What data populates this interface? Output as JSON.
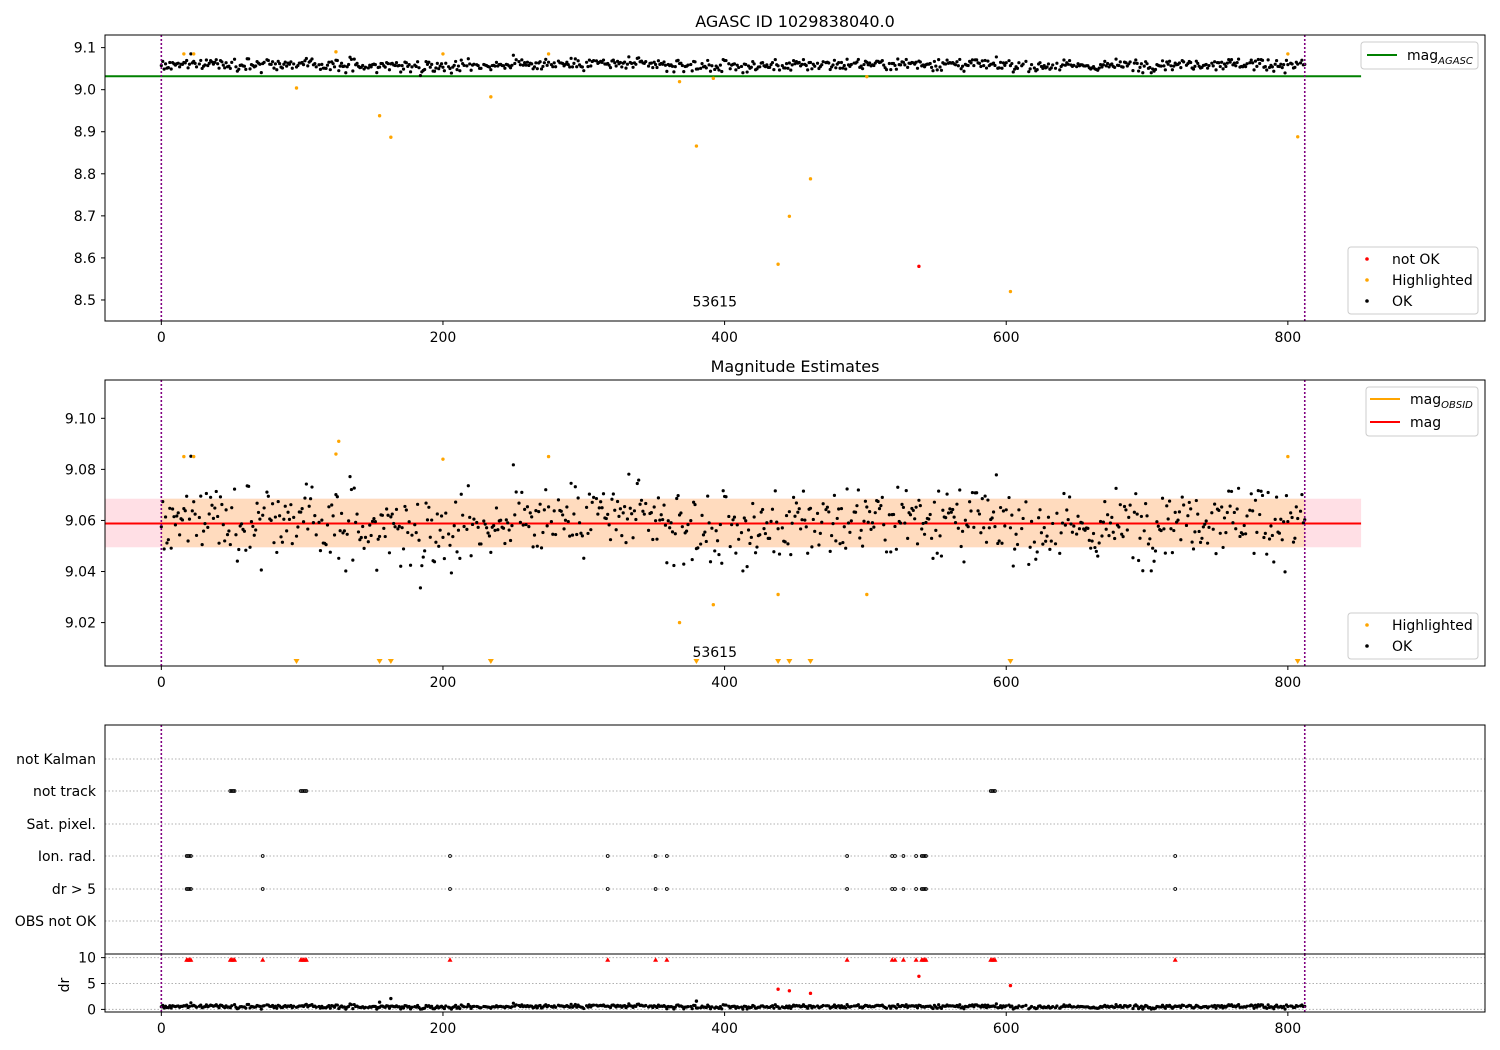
{
  "chart_data": [
    {
      "type": "scatter",
      "title": "AGASC ID 1029838040.0",
      "xlabel": "",
      "ylabel": "",
      "xlim": [
        -40,
        940
      ],
      "ylim": [
        8.45,
        9.13
      ],
      "xticks": [
        0,
        200,
        400,
        600,
        800
      ],
      "yticks": [
        8.5,
        8.6,
        8.7,
        8.8,
        8.9,
        9.0,
        9.1
      ],
      "annotation": {
        "text": "53615",
        "x": 393,
        "y": 8.485
      },
      "vlines": [
        0,
        812
      ],
      "hlines": [
        {
          "name": "mag_AGASC",
          "y": 9.032,
          "x_range": [
            -40,
            852
          ],
          "color": "#008000"
        }
      ],
      "legend_lines": [
        {
          "label": "mag",
          "sub": "AGASC",
          "color": "#008000"
        }
      ],
      "legend_points": [
        {
          "label": "not OK",
          "color": "#ff0000"
        },
        {
          "label": "Highlighted",
          "color": "#ffa500"
        },
        {
          "label": "OK",
          "color": "#000000"
        }
      ],
      "series": [
        {
          "name": "Highlighted",
          "color": "#ffa500",
          "points": [
            [
              16,
              9.085
            ],
            [
              23,
              9.085
            ],
            [
              96,
              9.004
            ],
            [
              124,
              9.09
            ],
            [
              155,
              8.938
            ],
            [
              163,
              8.887
            ],
            [
              200,
              9.085
            ],
            [
              234,
              8.983
            ],
            [
              275,
              9.085
            ],
            [
              368,
              9.019
            ],
            [
              380,
              8.866
            ],
            [
              392,
              9.027
            ],
            [
              438,
              8.585
            ],
            [
              446,
              8.699
            ],
            [
              461,
              8.788
            ],
            [
              501,
              9.031
            ],
            [
              603,
              8.52
            ],
            [
              800,
              9.085
            ],
            [
              807,
              8.888
            ]
          ]
        },
        {
          "name": "not OK",
          "color": "#ff0000",
          "points": [
            [
              538,
              8.58
            ]
          ]
        }
      ],
      "ok_series": {
        "name": "OK",
        "color": "#000000",
        "x_range": [
          0,
          812
        ],
        "mean": 9.059,
        "spread": 0.009
      }
    },
    {
      "type": "scatter",
      "title": "Magnitude Estimates",
      "xlabel": "",
      "ylabel": "",
      "xlim": [
        -40,
        940
      ],
      "ylim": [
        9.003,
        9.115
      ],
      "xticks": [
        0,
        200,
        400,
        600,
        800
      ],
      "yticks": [
        9.02,
        9.04,
        9.06,
        9.08,
        9.1
      ],
      "ytick_labels": [
        "9.02",
        "9.04",
        "9.06",
        "9.08",
        "9.10"
      ],
      "annotation": {
        "text": "53615",
        "x": 393,
        "y": 9.0045
      },
      "vlines": [
        0,
        812
      ],
      "band_outer": {
        "x_range": [
          -40,
          852
        ],
        "y_range": [
          9.0495,
          9.0685
        ],
        "color": "#ffc0cb"
      },
      "band_inner": {
        "x_range": [
          0,
          812
        ],
        "y_range": [
          9.0495,
          9.0685
        ],
        "color": "#ffdab9"
      },
      "hlines": [
        {
          "name": "mag",
          "y": 9.0588,
          "x_range": [
            -40,
            852
          ],
          "color": "#ff0000"
        }
      ],
      "legend_lines": [
        {
          "label": "mag",
          "sub": "OBSID",
          "color": "#ffa500"
        },
        {
          "label": "mag",
          "sub": "",
          "color": "#ff0000"
        }
      ],
      "legend_points": [
        {
          "label": "Highlighted",
          "color": "#ffa500"
        },
        {
          "label": "OK",
          "color": "#000000"
        }
      ],
      "series": [
        {
          "name": "Highlighted",
          "color": "#ffa500",
          "points": [
            [
              16,
              9.085
            ],
            [
              23,
              9.085
            ],
            [
              124,
              9.086
            ],
            [
              126,
              9.091
            ],
            [
              200,
              9.084
            ],
            [
              275,
              9.085
            ],
            [
              368,
              9.02
            ],
            [
              392,
              9.027
            ],
            [
              438,
              9.031
            ],
            [
              501,
              9.031
            ],
            [
              800,
              9.085
            ]
          ]
        }
      ],
      "offscale_markers": {
        "color": "#ffa500",
        "x": [
          96,
          155,
          163,
          234,
          380,
          438,
          446,
          461,
          603,
          807
        ]
      },
      "ok_series": {
        "name": "OK",
        "color": "#000000",
        "x_range": [
          0,
          812
        ],
        "mean": 9.059,
        "spread": 0.009
      }
    },
    {
      "type": "scatter",
      "title": "",
      "xlabel": "",
      "ylabel": "",
      "xlim": [
        -40,
        940
      ],
      "vlines": [
        0,
        812
      ],
      "flag_rows": [
        "not Kalman",
        "not track",
        "Sat. pixel.",
        "Ion. rad.",
        "dr > 5",
        "OBS not OK"
      ],
      "flags": {
        "not track": [
          49,
          50,
          51,
          52,
          99,
          100,
          101,
          102,
          103,
          589,
          590,
          591,
          592
        ],
        "Ion. rad.": [
          18,
          19,
          20,
          21,
          72,
          205,
          317,
          351,
          359,
          487,
          519,
          521,
          527,
          536,
          540,
          541,
          542,
          543,
          720
        ],
        "dr > 5": [
          18,
          19,
          20,
          21,
          72,
          205,
          317,
          351,
          359,
          487,
          519,
          521,
          527,
          536,
          540,
          541,
          542,
          543,
          720
        ]
      }
    },
    {
      "type": "scatter",
      "title": "",
      "xlabel": "",
      "ylabel": "dr",
      "xlim": [
        -40,
        940
      ],
      "ylim": [
        -0.5,
        10.7
      ],
      "xticks": [
        0,
        200,
        400,
        600,
        800
      ],
      "yticks": [
        0,
        5,
        10
      ],
      "vlines": [
        0,
        812
      ],
      "hlines_dotted": [
        0,
        5,
        10
      ],
      "series": [
        {
          "name": "dr > 10",
          "color": "#ff0000",
          "marker": "triangle",
          "points": [
            [
              18,
              9.6
            ],
            [
              19,
              9.6
            ],
            [
              20,
              9.6
            ],
            [
              21,
              9.6
            ],
            [
              49,
              9.6
            ],
            [
              50,
              9.6
            ],
            [
              51,
              9.6
            ],
            [
              52,
              9.6
            ],
            [
              72,
              9.6
            ],
            [
              99,
              9.6
            ],
            [
              100,
              9.6
            ],
            [
              101,
              9.6
            ],
            [
              102,
              9.6
            ],
            [
              103,
              9.6
            ],
            [
              205,
              9.6
            ],
            [
              317,
              9.6
            ],
            [
              351,
              9.6
            ],
            [
              359,
              9.6
            ],
            [
              487,
              9.6
            ],
            [
              519,
              9.6
            ],
            [
              521,
              9.6
            ],
            [
              527,
              9.6
            ],
            [
              536,
              9.6
            ],
            [
              540,
              9.6
            ],
            [
              541,
              9.6
            ],
            [
              542,
              9.6
            ],
            [
              543,
              9.6
            ],
            [
              589,
              9.6
            ],
            [
              590,
              9.6
            ],
            [
              591,
              9.6
            ],
            [
              592,
              9.6
            ],
            [
              720,
              9.6
            ]
          ]
        },
        {
          "name": "dr",
          "color": "#ff0000",
          "marker": "dot",
          "points": [
            [
              438,
              3.9
            ],
            [
              446,
              3.6
            ],
            [
              461,
              3.1
            ],
            [
              538,
              6.4
            ],
            [
              603,
              4.6
            ]
          ]
        },
        {
          "name": "dr",
          "color": "#000000",
          "marker": "dot",
          "points": [
            [
              155,
              1.4
            ],
            [
              163,
              2.1
            ],
            [
              380,
              1.6
            ]
          ]
        }
      ],
      "ok_series": {
        "name": "dr",
        "color": "#000000",
        "x_range": [
          0,
          812
        ],
        "mean": 0.55,
        "spread": 0.25
      }
    }
  ]
}
